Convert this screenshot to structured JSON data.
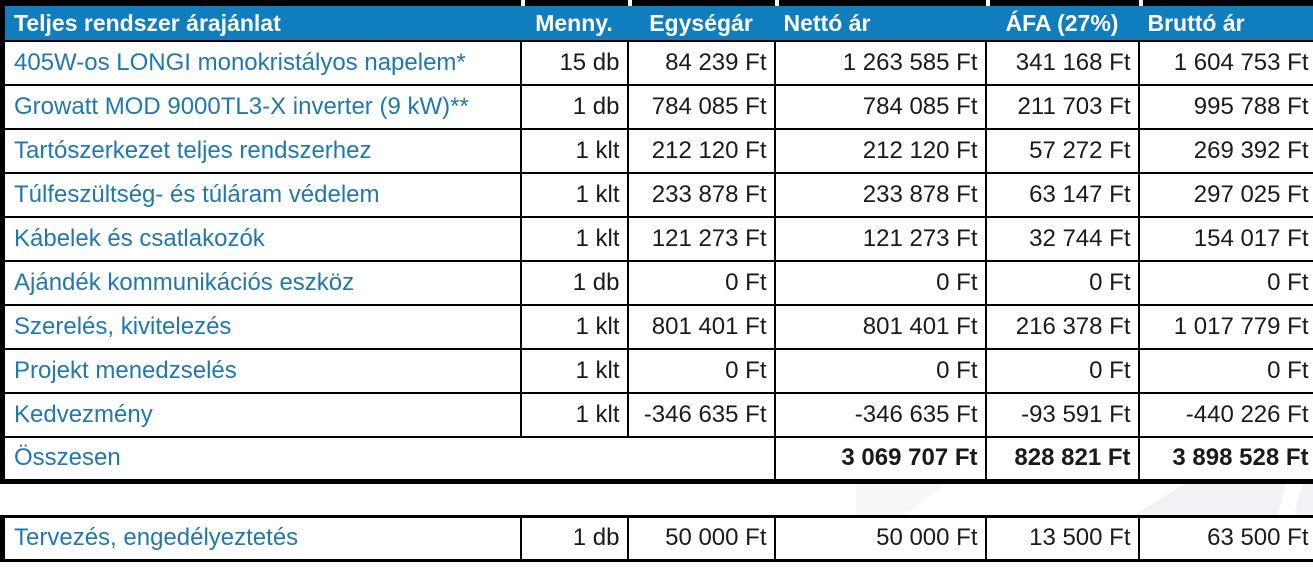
{
  "colors": {
    "header_bg": "#0F7DBE",
    "header_text": "#FFFFFF",
    "item_text": "#1F78B1",
    "value_text": "#1A1A1A",
    "border": "#000000"
  },
  "table": {
    "headers": [
      "Teljes rendszer árajánlat",
      "Menny.",
      "Egységár",
      "Nettó ár",
      "ÁFA (27%)",
      "Bruttó ár"
    ],
    "rows": [
      {
        "name": "405W-os LONGI monokristályos napelem*",
        "qty": "15 db",
        "unit": "84 239 Ft",
        "net": "1 263 585 Ft",
        "vat": "341 168 Ft",
        "gross": "1 604 753 Ft"
      },
      {
        "name": "Growatt MOD 9000TL3-X inverter (9 kW)**",
        "qty": "1 db",
        "unit": "784 085 Ft",
        "net": "784 085 Ft",
        "vat": "211 703 Ft",
        "gross": "995 788 Ft"
      },
      {
        "name": "Tartószerkezet teljes rendszerhez",
        "qty": "1 klt",
        "unit": "212 120 Ft",
        "net": "212 120 Ft",
        "vat": "57 272 Ft",
        "gross": "269 392 Ft"
      },
      {
        "name": "Túlfeszültség- és túláram védelem",
        "qty": "1 klt",
        "unit": "233 878 Ft",
        "net": "233 878 Ft",
        "vat": "63 147 Ft",
        "gross": "297 025 Ft"
      },
      {
        "name": "Kábelek és csatlakozók",
        "qty": "1 klt",
        "unit": "121 273 Ft",
        "net": "121 273 Ft",
        "vat": "32 744 Ft",
        "gross": "154 017 Ft"
      },
      {
        "name": "Ajándék kommunikációs eszköz",
        "qty": "1 db",
        "unit": "0 Ft",
        "net": "0 Ft",
        "vat": "0 Ft",
        "gross": "0 Ft"
      },
      {
        "name": "Szerelés, kivitelezés",
        "qty": "1 klt",
        "unit": "801 401 Ft",
        "net": "801 401 Ft",
        "vat": "216 378 Ft",
        "gross": "1 017 779 Ft"
      },
      {
        "name": "Projekt menedzselés",
        "qty": "1 klt",
        "unit": "0 Ft",
        "net": "0 Ft",
        "vat": "0 Ft",
        "gross": "0 Ft"
      },
      {
        "name": "Kedvezmény",
        "qty": "1 klt",
        "unit": "-346 635 Ft",
        "net": "-346 635 Ft",
        "vat": "-93 591 Ft",
        "gross": "-440 226 Ft"
      }
    ],
    "total": {
      "label": "Összesen",
      "net": "3 069 707 Ft",
      "vat": "828 821 Ft",
      "gross": "3 898 528 Ft"
    }
  },
  "extra_row": {
    "name": "Tervezés, engedélyeztetés",
    "qty": "1 db",
    "unit": "50 000 Ft",
    "net": "50 000 Ft",
    "vat": "13 500 Ft",
    "gross": "63 500 Ft"
  }
}
